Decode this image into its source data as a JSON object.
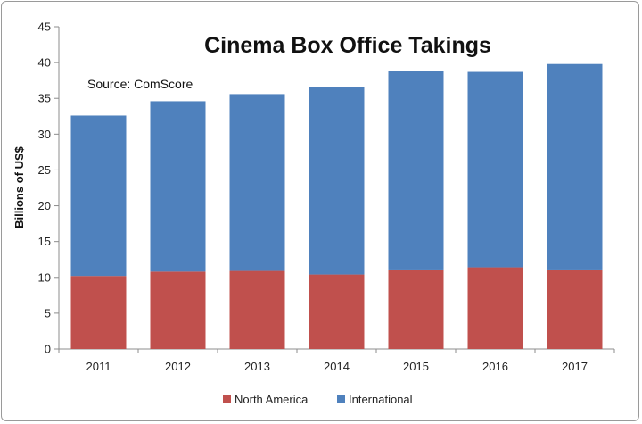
{
  "chart_data": {
    "type": "bar",
    "stacked": true,
    "title": "Cinema Box Office Takings",
    "annotation": "Source: ComScore",
    "xlabel": "",
    "ylabel": "Billions of US$",
    "ylim": [
      0,
      45
    ],
    "yticks": [
      0,
      5,
      10,
      15,
      20,
      25,
      30,
      35,
      40,
      45
    ],
    "grid": false,
    "legend_position": "bottom",
    "categories": [
      "2011",
      "2012",
      "2013",
      "2014",
      "2015",
      "2016",
      "2017"
    ],
    "series": [
      {
        "name": "North America",
        "color": "#c0504d",
        "values": [
          10.2,
          10.8,
          10.9,
          10.4,
          11.1,
          11.4,
          11.1
        ]
      },
      {
        "name": "International",
        "color": "#4f81bd",
        "values": [
          22.4,
          23.8,
          24.7,
          26.2,
          27.7,
          27.3,
          28.7
        ]
      }
    ]
  }
}
